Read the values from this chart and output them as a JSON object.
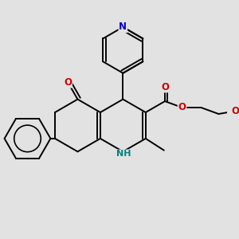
{
  "bg": "#e2e2e2",
  "bond_color": "#000000",
  "N_color": "#0000cc",
  "O_color": "#cc0000",
  "NH_color": "#008080",
  "bond_lw": 1.4,
  "font_size": 8.5,
  "dpi": 100,
  "fig_w": 3.0,
  "fig_h": 3.0,
  "xlim": [
    -1.3,
    1.55
  ],
  "ylim": [
    -1.05,
    1.3
  ]
}
